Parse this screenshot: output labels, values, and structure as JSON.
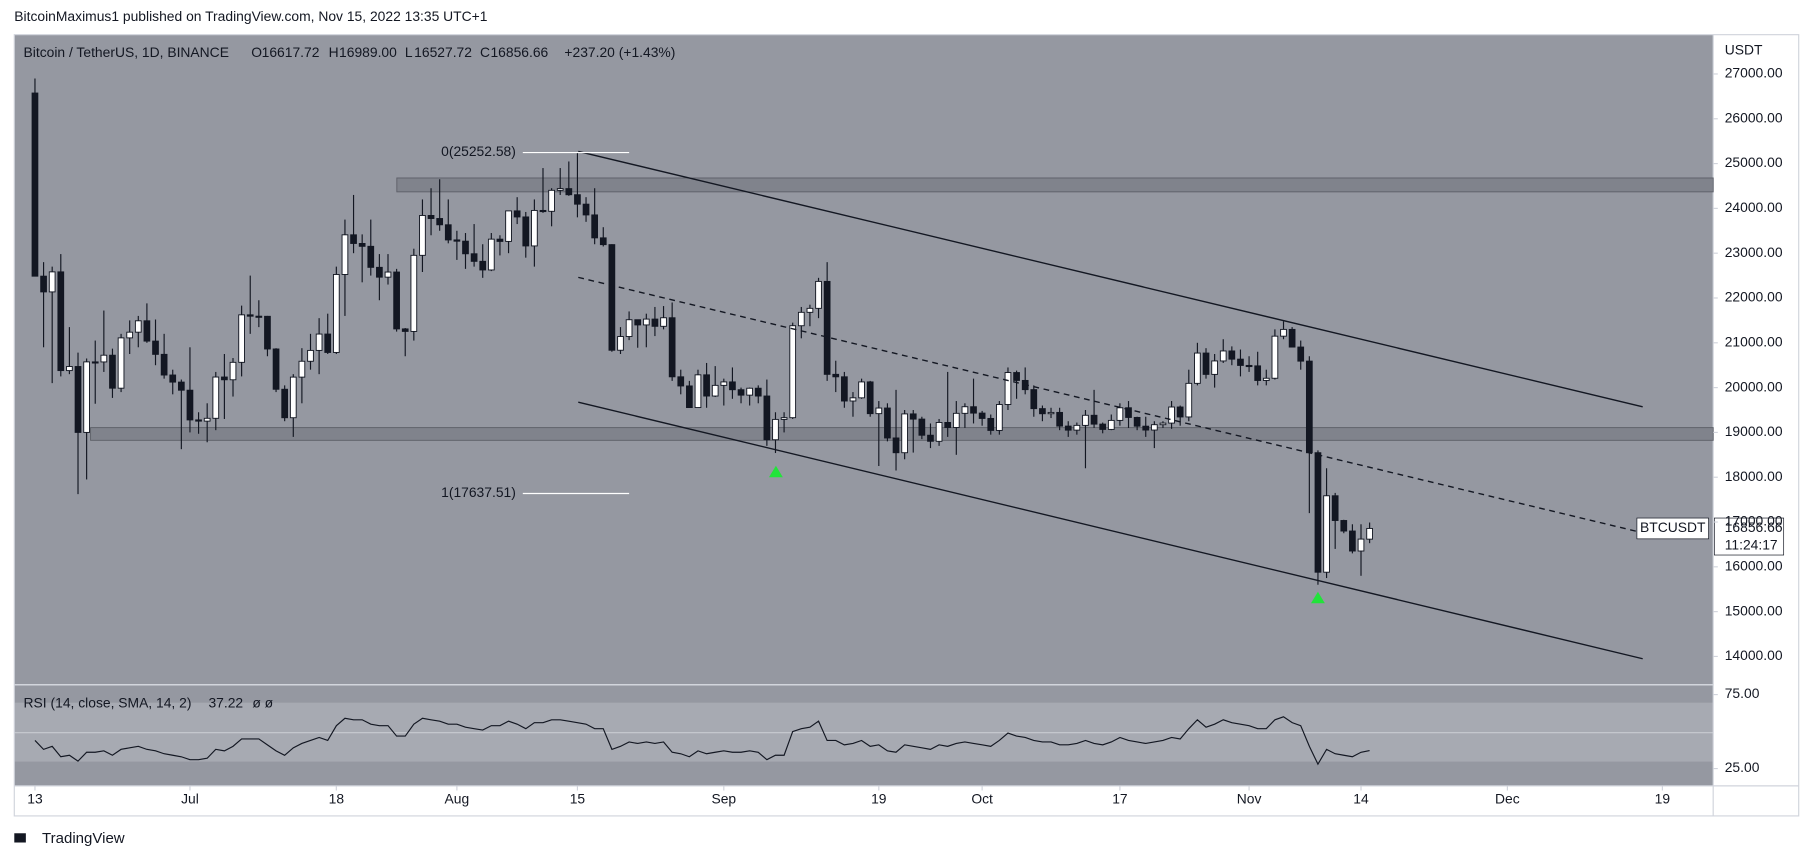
{
  "header": {
    "publisher": "BitcoinMaximus1 published on TradingView.com, Nov 15, 2022 13:35 UTC+1",
    "footer": "TradingView"
  },
  "chart_data": [
    {
      "type": "candlestick",
      "legend": {
        "symbol": "Bitcoin / TetherUS, 1D, BINANCE",
        "o_label": "O",
        "open": "16617.72",
        "h_label": "H",
        "high": "16989.00",
        "l_label": "L",
        "low": "16527.72",
        "c_label": "C",
        "close": "16856.66",
        "change": "+237.20 (+1.43%)"
      },
      "y_axis_label": "USDT",
      "annotations": {
        "fib_0": "0(25252.58)",
        "fib_1": "1(17637.51)"
      },
      "last_price": {
        "symbol": "BTCUSDT",
        "price": "16856.66",
        "countdown": "11:24:17"
      },
      "up_color": "#ffffff",
      "down_color": "#131722",
      "xlim": [
        -2.4,
        194.9
      ],
      "xticks": [
        {
          "value": 0,
          "label": "13"
        },
        {
          "value": 18,
          "label": "Jul"
        },
        {
          "value": 35,
          "label": "18"
        },
        {
          "value": 49,
          "label": "Aug"
        },
        {
          "value": 63,
          "label": "15"
        },
        {
          "value": 80,
          "label": "Sep"
        },
        {
          "value": 98,
          "label": "19"
        },
        {
          "value": 110,
          "label": "Oct"
        },
        {
          "value": 126,
          "label": "17"
        },
        {
          "value": 141,
          "label": "Nov"
        },
        {
          "value": 154,
          "label": "14"
        },
        {
          "value": 171,
          "label": "Dec"
        },
        {
          "value": 189,
          "label": "19"
        }
      ],
      "ylim": [
        13381,
        27877
      ],
      "yticks": [
        {
          "value": 14000,
          "label": "14000.00"
        },
        {
          "value": 15000,
          "label": "15000.00"
        },
        {
          "value": 16000,
          "label": "16000.00"
        },
        {
          "value": 17000,
          "label": "17000.00"
        },
        {
          "value": 18000,
          "label": "18000.00"
        },
        {
          "value": 19000,
          "label": "19000.00"
        },
        {
          "value": 20000,
          "label": "20000.00"
        },
        {
          "value": 21000,
          "label": "21000.00"
        },
        {
          "value": 22000,
          "label": "22000.00"
        },
        {
          "value": 23000,
          "label": "23000.00"
        },
        {
          "value": 24000,
          "label": "24000.00"
        },
        {
          "value": 25000,
          "label": "25000.00"
        },
        {
          "value": 26000,
          "label": "26000.00"
        },
        {
          "value": 27000,
          "label": "27000.00"
        }
      ],
      "candles": [
        [
          26574,
          26900,
          22600,
          22487
        ],
        [
          22487,
          22800,
          20900,
          22136
        ],
        [
          22136,
          22700,
          20100,
          22583
        ],
        [
          22583,
          22980,
          20250,
          20380
        ],
        [
          20380,
          21350,
          20300,
          20471
        ],
        [
          20471,
          20780,
          17622,
          19000
        ],
        [
          19000,
          20650,
          17950,
          20574
        ],
        [
          20574,
          21050,
          19640,
          20573
        ],
        [
          20573,
          21720,
          20350,
          20723
        ],
        [
          20723,
          20870,
          19770,
          19987
        ],
        [
          19987,
          21200,
          19900,
          21110
        ],
        [
          21110,
          21500,
          20750,
          21237
        ],
        [
          21237,
          21600,
          20900,
          21491
        ],
        [
          21491,
          21880,
          21000,
          21038
        ],
        [
          21038,
          21520,
          20500,
          20742
        ],
        [
          20742,
          21200,
          20200,
          20281
        ],
        [
          20281,
          20400,
          19850,
          20123
        ],
        [
          20123,
          20180,
          18626,
          19942
        ],
        [
          19942,
          20900,
          19000,
          19279
        ],
        [
          19279,
          19450,
          18970,
          19252
        ],
        [
          19252,
          19650,
          18780,
          19315
        ],
        [
          19315,
          20350,
          19050,
          20236
        ],
        [
          20236,
          20750,
          19300,
          20175
        ],
        [
          20175,
          20660,
          19800,
          20564
        ],
        [
          20564,
          21830,
          20250,
          21624
        ],
        [
          21624,
          22500,
          21200,
          21594
        ],
        [
          21594,
          21950,
          21350,
          21591
        ],
        [
          21591,
          21600,
          20700,
          20862
        ],
        [
          20862,
          20880,
          19900,
          19963
        ],
        [
          19963,
          20050,
          19250,
          19328
        ],
        [
          19328,
          20300,
          18900,
          20234
        ],
        [
          20234,
          20880,
          19650,
          20588
        ],
        [
          20588,
          21200,
          20400,
          20830
        ],
        [
          20830,
          21550,
          20300,
          21195
        ],
        [
          21195,
          21650,
          20750,
          20785
        ],
        [
          20785,
          22700,
          20750,
          22525
        ],
        [
          22525,
          23750,
          21600,
          23410
        ],
        [
          23410,
          24300,
          23000,
          23217
        ],
        [
          23217,
          23420,
          22350,
          23153
        ],
        [
          23153,
          23750,
          22500,
          22684
        ],
        [
          22684,
          22980,
          21950,
          22465
        ],
        [
          22465,
          22980,
          22300,
          22579
        ],
        [
          22579,
          22650,
          21250,
          21310
        ],
        [
          21310,
          21330,
          20700,
          21254
        ],
        [
          21254,
          23100,
          21050,
          22952
        ],
        [
          22952,
          24200,
          22580,
          23842
        ],
        [
          23842,
          24450,
          23400,
          23774
        ],
        [
          23774,
          24650,
          23500,
          23634
        ],
        [
          23634,
          24200,
          23220,
          23296
        ],
        [
          23296,
          23500,
          22850,
          23268
        ],
        [
          23268,
          23450,
          22650,
          22987
        ],
        [
          22987,
          23650,
          22700,
          22818
        ],
        [
          22818,
          23200,
          22450,
          22626
        ],
        [
          22626,
          23450,
          22600,
          23313
        ],
        [
          23313,
          23400,
          22950,
          23263
        ],
        [
          23263,
          23950,
          23000,
          23944
        ],
        [
          23944,
          24250,
          23650,
          23809
        ],
        [
          23809,
          23920,
          22900,
          23162
        ],
        [
          23162,
          24200,
          22700,
          23954
        ],
        [
          23954,
          24900,
          23900,
          23935
        ],
        [
          23935,
          24450,
          23600,
          24403
        ],
        [
          24403,
          24900,
          24300,
          24441
        ],
        [
          24441,
          25047,
          24280,
          24305
        ],
        [
          24305,
          25252.58,
          23800,
          24094
        ],
        [
          24094,
          24250,
          23700,
          23854
        ],
        [
          23854,
          24450,
          23200,
          23342
        ],
        [
          23342,
          23580,
          23150,
          23191
        ],
        [
          23191,
          23200,
          20800,
          20834
        ],
        [
          20834,
          21350,
          20750,
          21140
        ],
        [
          21140,
          21700,
          21060,
          21515
        ],
        [
          21515,
          21520,
          20890,
          21399
        ],
        [
          21399,
          21650,
          20900,
          21529
        ],
        [
          21529,
          21800,
          21150,
          21368
        ],
        [
          21368,
          21820,
          21300,
          21559
        ],
        [
          21559,
          21900,
          20150,
          20241
        ],
        [
          20241,
          20400,
          19850,
          20037
        ],
        [
          20037,
          20150,
          19550,
          19555
        ],
        [
          19555,
          20400,
          19550,
          20285
        ],
        [
          20285,
          20550,
          19550,
          19812
        ],
        [
          19812,
          20480,
          19790,
          20050
        ],
        [
          20050,
          20200,
          19600,
          20127
        ],
        [
          20127,
          20450,
          19750,
          19953
        ],
        [
          19953,
          20000,
          19650,
          19832
        ],
        [
          19832,
          20000,
          19600,
          19986
        ],
        [
          19986,
          20050,
          19650,
          19812
        ],
        [
          19812,
          20180,
          18700,
          18837
        ],
        [
          18837,
          19450,
          18540,
          19290
        ],
        [
          19290,
          19450,
          19000,
          19329
        ],
        [
          19329,
          21450,
          19300,
          21381
        ],
        [
          21381,
          21800,
          21100,
          21680
        ],
        [
          21680,
          21850,
          21370,
          21769
        ],
        [
          21769,
          22450,
          21550,
          22370
        ],
        [
          22370,
          22800,
          20150,
          20296
        ],
        [
          20296,
          20600,
          19900,
          20241
        ],
        [
          20241,
          20350,
          19550,
          19701
        ],
        [
          19701,
          19900,
          19350,
          19772
        ],
        [
          19772,
          20200,
          19750,
          20127
        ],
        [
          20127,
          20150,
          19350,
          19419
        ],
        [
          19419,
          19700,
          18250,
          19544
        ],
        [
          19544,
          19650,
          18800,
          18876
        ],
        [
          18876,
          19950,
          18150,
          18547
        ],
        [
          18547,
          19500,
          18400,
          19413
        ],
        [
          19413,
          19500,
          18550,
          19297
        ],
        [
          19297,
          19350,
          18850,
          18937
        ],
        [
          18937,
          19200,
          18650,
          18802
        ],
        [
          18802,
          19300,
          18700,
          19222
        ],
        [
          19222,
          20350,
          18900,
          19110
        ],
        [
          19110,
          19700,
          18500,
          19426
        ],
        [
          19426,
          19650,
          19100,
          19573
        ],
        [
          19573,
          20200,
          19200,
          19431
        ],
        [
          19431,
          19480,
          19150,
          19312
        ],
        [
          19312,
          19400,
          18950,
          19044
        ],
        [
          19044,
          19700,
          18950,
          19623
        ],
        [
          19623,
          20450,
          19500,
          20336
        ],
        [
          20336,
          20380,
          19750,
          20160
        ],
        [
          20160,
          20450,
          19850,
          19955
        ],
        [
          19955,
          20050,
          19350,
          19531
        ],
        [
          19531,
          19600,
          19250,
          19417
        ],
        [
          19417,
          19550,
          19320,
          19446
        ],
        [
          19446,
          19550,
          19050,
          19141
        ],
        [
          19141,
          19250,
          18900,
          19051
        ],
        [
          19051,
          19220,
          18950,
          19157
        ],
        [
          19157,
          19500,
          18200,
          19382
        ],
        [
          19382,
          19950,
          19100,
          19185
        ],
        [
          19185,
          19220,
          18980,
          19067
        ],
        [
          19067,
          19400,
          19050,
          19268
        ],
        [
          19268,
          19650,
          19150,
          19550
        ],
        [
          19550,
          19700,
          19100,
          19334
        ],
        [
          19334,
          19350,
          19050,
          19139
        ],
        [
          19139,
          19350,
          18900,
          19053
        ],
        [
          19053,
          19250,
          18650,
          19172
        ],
        [
          19172,
          19250,
          19100,
          19208
        ],
        [
          19208,
          19700,
          19080,
          19567
        ],
        [
          19567,
          19600,
          19150,
          19345
        ],
        [
          19345,
          20400,
          19250,
          20095
        ],
        [
          20095,
          21000,
          20050,
          20771
        ],
        [
          20771,
          20880,
          20200,
          20295
        ],
        [
          20295,
          20750,
          20000,
          20595
        ],
        [
          20595,
          21080,
          20550,
          20818
        ],
        [
          20818,
          20920,
          20500,
          20635
        ],
        [
          20635,
          20850,
          20250,
          20495
        ],
        [
          20495,
          20700,
          20350,
          20485
        ],
        [
          20485,
          20800,
          20050,
          20159
        ],
        [
          20159,
          20400,
          20050,
          20209
        ],
        [
          20209,
          21300,
          20180,
          21148
        ],
        [
          21148,
          21480,
          21080,
          21299
        ],
        [
          21299,
          21350,
          20900,
          20905
        ],
        [
          20905,
          21050,
          20400,
          20591
        ],
        [
          20591,
          20700,
          17200,
          18547
        ],
        [
          18547,
          18600,
          15600,
          15880
        ],
        [
          15880,
          18200,
          15750,
          17586
        ],
        [
          17586,
          17650,
          16400,
          17034
        ],
        [
          17034,
          17050,
          16750,
          16799
        ],
        [
          16799,
          16950,
          16300,
          16353
        ],
        [
          16353,
          16950,
          15800,
          16619
        ],
        [
          16617.72,
          16989,
          16527.72,
          16856.66
        ]
      ]
    },
    {
      "type": "line",
      "title": "RSI (14, close, SMA, 14, 2)",
      "value_label": "37.22",
      "extra": "ø ø",
      "color": "#131722",
      "xlim": [
        -2.4,
        194.9
      ],
      "ylim": [
        13.3,
        81.25
      ],
      "yticks": [
        {
          "value": 75,
          "label": "75.00"
        },
        {
          "value": 25,
          "label": "25.00"
        }
      ],
      "values": [
        44,
        38,
        40,
        33,
        34,
        30,
        36,
        36,
        37,
        34,
        38,
        39,
        40,
        38,
        37,
        35,
        34,
        33,
        31,
        31,
        32,
        38,
        37,
        40,
        45,
        45,
        45,
        41,
        37,
        34,
        39,
        42,
        44,
        46,
        44,
        54,
        59,
        58,
        58,
        55,
        54,
        54,
        47,
        47,
        55,
        59,
        58,
        57,
        55,
        55,
        53,
        52,
        51,
        54,
        54,
        57,
        55,
        52,
        56,
        56,
        58,
        58,
        57,
        56,
        55,
        52,
        52,
        38,
        40,
        43,
        42,
        43,
        42,
        43,
        36,
        35,
        33,
        37,
        35,
        36,
        37,
        36,
        36,
        37,
        36,
        31,
        34,
        34,
        50,
        52,
        53,
        57,
        44,
        44,
        41,
        42,
        44,
        40,
        41,
        37,
        36,
        41,
        40,
        39,
        38,
        41,
        40,
        42,
        43,
        42,
        41,
        40,
        44,
        49,
        47,
        46,
        44,
        43,
        43,
        41,
        41,
        42,
        44,
        42,
        41,
        43,
        46,
        44,
        43,
        42,
        43,
        44,
        46,
        45,
        52,
        58,
        53,
        55,
        58,
        56,
        55,
        54,
        52,
        52,
        58,
        60,
        56,
        54,
        40,
        28,
        38,
        35,
        34,
        33,
        36,
        37.22
      ]
    }
  ]
}
